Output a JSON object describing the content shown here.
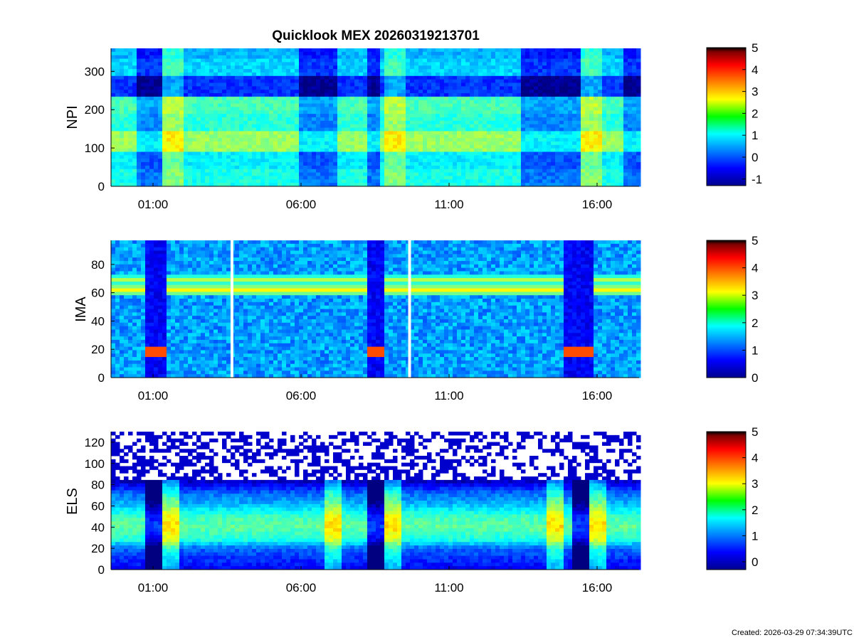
{
  "figure": {
    "title": "Quicklook MEX 20260319213701",
    "footer": "Created: 2026-03-29 07:34:39UTC"
  },
  "chart_data": [
    {
      "type": "heatmap",
      "ylabel": "NPI",
      "ylim": [
        0,
        360
      ],
      "yticks": [
        "0",
        "100",
        "200",
        "300"
      ],
      "xticks": [
        "01:00",
        "06:00",
        "11:00",
        "16:00"
      ],
      "colorbar": {
        "range": [
          -1.3,
          5
        ],
        "ticks": [
          "-1",
          "0",
          "1",
          "2",
          "3",
          "4",
          "5"
        ]
      },
      "bands": [
        {
          "y": [
            0,
            45
          ],
          "level": 1.2
        },
        {
          "y": [
            45,
            90
          ],
          "level": 1.0
        },
        {
          "y": [
            90,
            140
          ],
          "level": 2.0
        },
        {
          "y": [
            140,
            185
          ],
          "level": 1.3
        },
        {
          "y": [
            185,
            235
          ],
          "level": 1.5
        },
        {
          "y": [
            235,
            290
          ],
          "level": -0.2
        },
        {
          "y": [
            290,
            330
          ],
          "level": 0.8
        },
        {
          "y": [
            330,
            360
          ],
          "level": 0.6
        }
      ],
      "events": [
        {
          "start": "00:30",
          "end": "01:20",
          "kind": "low"
        },
        {
          "start": "01:20",
          "end": "02:00",
          "kind": "high"
        },
        {
          "start": "06:00",
          "end": "07:10",
          "kind": "low"
        },
        {
          "start": "08:10",
          "end": "08:40",
          "kind": "low"
        },
        {
          "start": "08:50",
          "end": "09:30",
          "kind": "high"
        },
        {
          "start": "13:30",
          "end": "15:30",
          "kind": "low"
        },
        {
          "start": "15:30",
          "end": "16:10",
          "kind": "high"
        },
        {
          "start": "16:50",
          "end": "17:30",
          "kind": "low"
        }
      ]
    },
    {
      "type": "heatmap",
      "ylabel": "IMA",
      "ylim": [
        0,
        97
      ],
      "yticks": [
        "0",
        "20",
        "40",
        "60",
        "80"
      ],
      "xticks": [
        "01:00",
        "06:00",
        "11:00",
        "16:00"
      ],
      "colorbar": {
        "range": [
          0,
          5
        ],
        "ticks": [
          "0",
          "1",
          "2",
          "3",
          "4",
          "5"
        ]
      },
      "background_level": 1.4,
      "lines": [
        {
          "y": 62,
          "level": 3.2
        },
        {
          "y": 69,
          "level": 2.8
        }
      ],
      "gaps": [
        "03:40",
        "09:40"
      ],
      "events": [
        {
          "start": "00:40",
          "end": "01:30",
          "kind": "dip"
        },
        {
          "start": "08:10",
          "end": "08:50",
          "kind": "dip"
        },
        {
          "start": "14:50",
          "end": "15:50",
          "kind": "dip"
        }
      ]
    },
    {
      "type": "heatmap",
      "ylabel": "ELS",
      "ylim": [
        0,
        130
      ],
      "yticks": [
        "0",
        "20",
        "40",
        "60",
        "80",
        "100",
        "120"
      ],
      "xticks": [
        "01:00",
        "06:00",
        "11:00",
        "16:00"
      ],
      "colorbar": {
        "range": [
          -0.3,
          5
        ],
        "ticks": [
          "0",
          "1",
          "2",
          "3",
          "4",
          "5"
        ]
      },
      "profile": [
        {
          "y": 0,
          "level": 0.3
        },
        {
          "y": 10,
          "level": 0.6
        },
        {
          "y": 20,
          "level": 0.9
        },
        {
          "y": 28,
          "level": 1.8
        },
        {
          "y": 40,
          "level": 2.2
        },
        {
          "y": 50,
          "level": 2.0
        },
        {
          "y": 62,
          "level": 1.3
        },
        {
          "y": 72,
          "level": 0.9
        },
        {
          "y": 80,
          "level": 0.3
        },
        {
          "y": 86,
          "level": -0.2
        }
      ],
      "events": [
        {
          "start": "00:40",
          "end": "01:20",
          "kind": "dip"
        },
        {
          "start": "01:20",
          "end": "01:50",
          "kind": "high"
        },
        {
          "start": "06:50",
          "end": "07:20",
          "kind": "high"
        },
        {
          "start": "08:10",
          "end": "08:50",
          "kind": "dip"
        },
        {
          "start": "08:50",
          "end": "09:20",
          "kind": "high"
        },
        {
          "start": "14:20",
          "end": "14:50",
          "kind": "high"
        },
        {
          "start": "15:10",
          "end": "15:40",
          "kind": "dip"
        },
        {
          "start": "15:40",
          "end": "16:20",
          "kind": "high"
        }
      ]
    }
  ]
}
